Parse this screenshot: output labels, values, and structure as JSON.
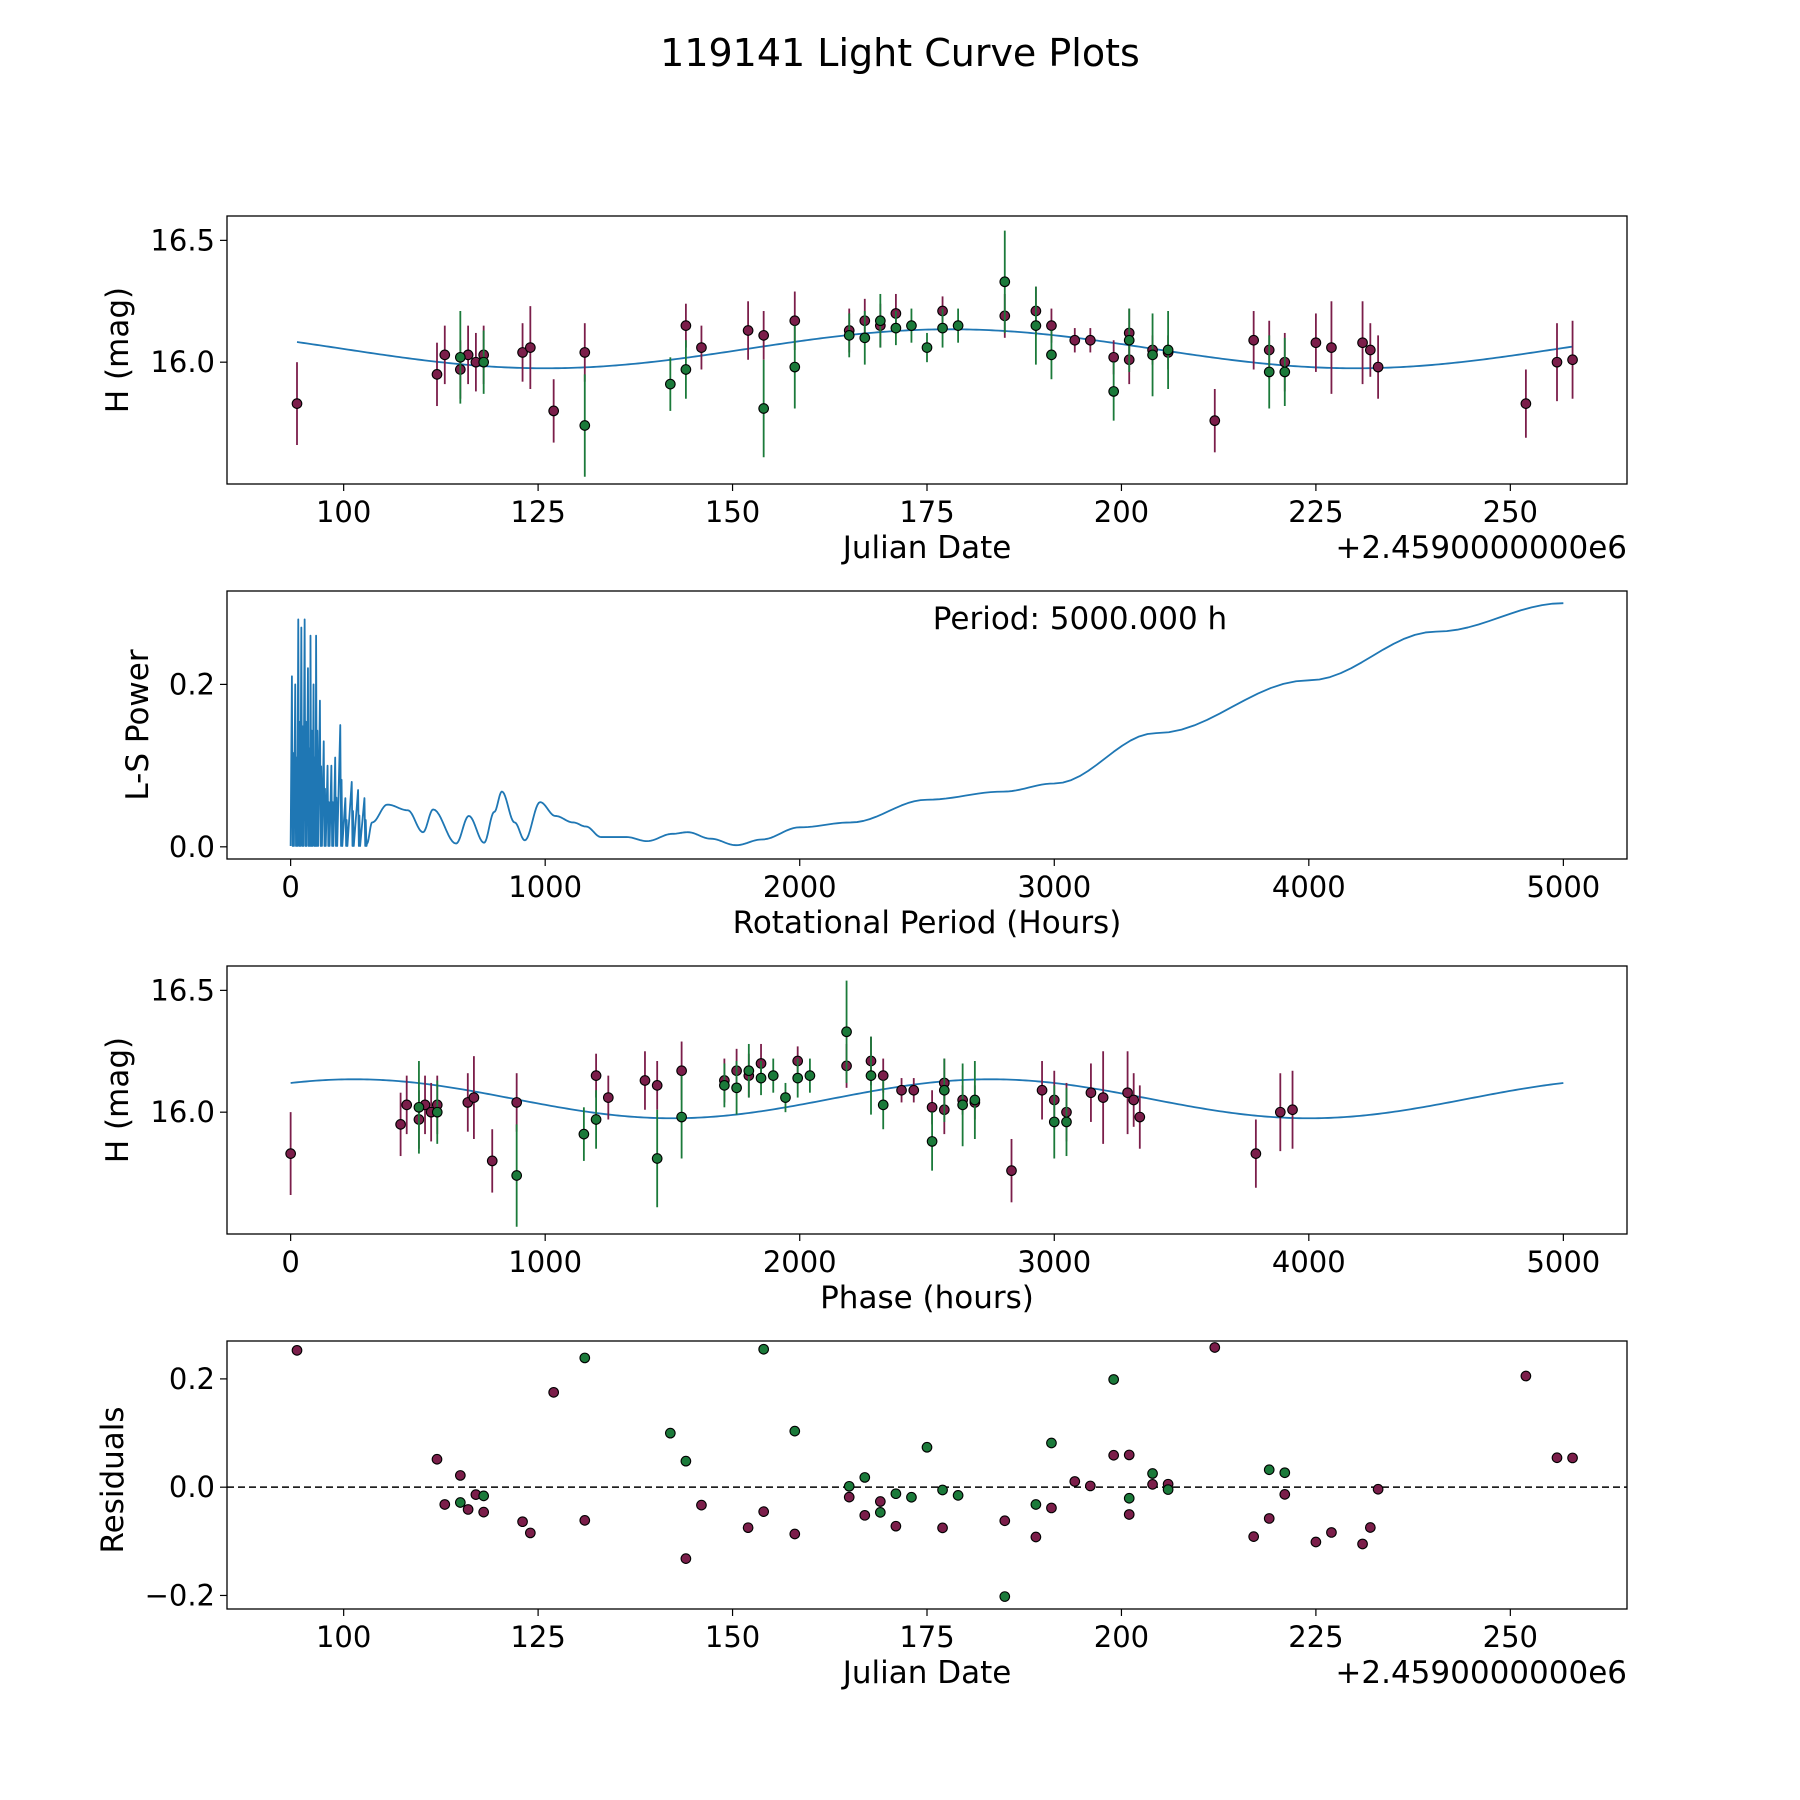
{
  "figure": {
    "title": "119141 Light Curve Plots"
  },
  "colors": {
    "model": "#1f77b4",
    "band_a": "#7b1e4a",
    "band_b": "#1b7a3a",
    "marker_edge": "#000000",
    "zero_line": "#000000"
  },
  "chart_data": [
    {
      "id": "lightcurve",
      "type": "scatter",
      "xlabel": "Julian Date",
      "ylabel": "H (mag)",
      "offset_text": "+2.4590000000e6",
      "xlim": [
        85,
        265
      ],
      "ylim": [
        15.5,
        16.6
      ],
      "x_ticks": [
        100,
        125,
        150,
        175,
        200,
        225,
        250
      ],
      "x_tick_labels": [
        "100",
        "125",
        "150",
        "175",
        "200",
        "225",
        "250"
      ],
      "y_ticks": [
        16.0,
        16.5
      ],
      "y_tick_labels": [
        "16.0",
        "16.5"
      ],
      "model_curve": {
        "kind": "sine",
        "mean": 16.055,
        "amplitude": 0.08,
        "period": 104.17,
        "peak_at": 178,
        "x_range": [
          94,
          258
        ]
      },
      "series": [
        {
          "name": "band_a",
          "color_key": "band_a",
          "points": [
            {
              "x": 94,
              "y": 15.83,
              "err": 0.17
            },
            {
              "x": 112,
              "y": 15.95,
              "err": 0.13
            },
            {
              "x": 113,
              "y": 16.03,
              "err": 0.12
            },
            {
              "x": 115,
              "y": 15.97,
              "err": 0.12
            },
            {
              "x": 116,
              "y": 16.03,
              "err": 0.12
            },
            {
              "x": 117,
              "y": 16.0,
              "err": 0.12
            },
            {
              "x": 118,
              "y": 16.03,
              "err": 0.12
            },
            {
              "x": 123,
              "y": 16.04,
              "err": 0.12
            },
            {
              "x": 124,
              "y": 16.06,
              "err": 0.17
            },
            {
              "x": 127,
              "y": 15.8,
              "err": 0.13
            },
            {
              "x": 131,
              "y": 16.04,
              "err": 0.12
            },
            {
              "x": 144,
              "y": 16.15,
              "err": 0.09
            },
            {
              "x": 146,
              "y": 16.06,
              "err": 0.09
            },
            {
              "x": 152,
              "y": 16.13,
              "err": 0.12
            },
            {
              "x": 154,
              "y": 16.11,
              "err": 0.1
            },
            {
              "x": 158,
              "y": 16.17,
              "err": 0.12
            },
            {
              "x": 165,
              "y": 16.13,
              "err": 0.09
            },
            {
              "x": 167,
              "y": 16.17,
              "err": 0.09
            },
            {
              "x": 169,
              "y": 16.15,
              "err": 0.09
            },
            {
              "x": 171,
              "y": 16.2,
              "err": 0.08
            },
            {
              "x": 177,
              "y": 16.21,
              "err": 0.06
            },
            {
              "x": 185,
              "y": 16.19,
              "err": 0.09
            },
            {
              "x": 189,
              "y": 16.21,
              "err": 0.1
            },
            {
              "x": 191,
              "y": 16.15,
              "err": 0.07
            },
            {
              "x": 194,
              "y": 16.09,
              "err": 0.05
            },
            {
              "x": 196,
              "y": 16.09,
              "err": 0.05
            },
            {
              "x": 199,
              "y": 16.02,
              "err": 0.07
            },
            {
              "x": 201,
              "y": 16.01,
              "err": 0.1
            },
            {
              "x": 201,
              "y": 16.12,
              "err": 0.1
            },
            {
              "x": 204,
              "y": 16.05,
              "err": 0.06
            },
            {
              "x": 206,
              "y": 16.04,
              "err": 0.07
            },
            {
              "x": 212,
              "y": 15.76,
              "err": 0.13
            },
            {
              "x": 217,
              "y": 16.09,
              "err": 0.12
            },
            {
              "x": 219,
              "y": 16.05,
              "err": 0.12
            },
            {
              "x": 221,
              "y": 16.0,
              "err": 0.12
            },
            {
              "x": 225,
              "y": 16.08,
              "err": 0.12
            },
            {
              "x": 227,
              "y": 16.06,
              "err": 0.19
            },
            {
              "x": 231,
              "y": 16.08,
              "err": 0.17
            },
            {
              "x": 232,
              "y": 16.05,
              "err": 0.11
            },
            {
              "x": 233,
              "y": 15.98,
              "err": 0.13
            },
            {
              "x": 252,
              "y": 15.83,
              "err": 0.14
            },
            {
              "x": 256,
              "y": 16.0,
              "err": 0.16
            },
            {
              "x": 258,
              "y": 16.01,
              "err": 0.16
            }
          ]
        },
        {
          "name": "band_b",
          "color_key": "band_b",
          "points": [
            {
              "x": 115,
              "y": 16.02,
              "err": 0.19
            },
            {
              "x": 118,
              "y": 16.0,
              "err": 0.13
            },
            {
              "x": 131,
              "y": 15.74,
              "err": 0.21
            },
            {
              "x": 142,
              "y": 15.91,
              "err": 0.11
            },
            {
              "x": 144,
              "y": 15.97,
              "err": 0.12
            },
            {
              "x": 154,
              "y": 15.81,
              "err": 0.2
            },
            {
              "x": 158,
              "y": 15.98,
              "err": 0.17
            },
            {
              "x": 165,
              "y": 16.11,
              "err": 0.09
            },
            {
              "x": 167,
              "y": 16.1,
              "err": 0.11
            },
            {
              "x": 169,
              "y": 16.17,
              "err": 0.11
            },
            {
              "x": 171,
              "y": 16.14,
              "err": 0.07
            },
            {
              "x": 173,
              "y": 16.15,
              "err": 0.07
            },
            {
              "x": 175,
              "y": 16.06,
              "err": 0.06
            },
            {
              "x": 177,
              "y": 16.14,
              "err": 0.08
            },
            {
              "x": 179,
              "y": 16.15,
              "err": 0.07
            },
            {
              "x": 185,
              "y": 16.33,
              "err": 0.21
            },
            {
              "x": 189,
              "y": 16.15,
              "err": 0.16
            },
            {
              "x": 191,
              "y": 16.03,
              "err": 0.1
            },
            {
              "x": 199,
              "y": 15.88,
              "err": 0.12
            },
            {
              "x": 201,
              "y": 16.09,
              "err": 0.13
            },
            {
              "x": 204,
              "y": 16.03,
              "err": 0.17
            },
            {
              "x": 206,
              "y": 16.05,
              "err": 0.16
            },
            {
              "x": 219,
              "y": 15.96,
              "err": 0.15
            },
            {
              "x": 221,
              "y": 15.96,
              "err": 0.14
            }
          ]
        }
      ]
    },
    {
      "id": "periodogram",
      "type": "line",
      "xlabel": "Rotational Period (Hours)",
      "ylabel": "L-S Power",
      "annotation": "Period: 5000.000 h",
      "xlim": [
        -250,
        5250
      ],
      "ylim": [
        -0.015,
        0.315
      ],
      "x_ticks": [
        0,
        1000,
        2000,
        3000,
        4000,
        5000
      ],
      "x_tick_labels": [
        "0",
        "1000",
        "2000",
        "3000",
        "4000",
        "5000"
      ],
      "y_ticks": [
        0.0,
        0.2
      ],
      "y_tick_labels": [
        "0.0",
        "0.2"
      ],
      "envelope": {
        "x": [
          300,
          320,
          380,
          460,
          520,
          560,
          650,
          700,
          760,
          800,
          830,
          880,
          920,
          980,
          1040,
          1110,
          1160,
          1220,
          1320,
          1400,
          1500,
          1560,
          1650,
          1750,
          1850,
          2000,
          2200,
          2500,
          2800,
          3000,
          3400,
          4000,
          4500,
          5000
        ],
        "y": [
          0.004,
          0.03,
          0.052,
          0.045,
          0.018,
          0.046,
          0.004,
          0.038,
          0.005,
          0.043,
          0.068,
          0.03,
          0.008,
          0.055,
          0.038,
          0.03,
          0.025,
          0.012,
          0.012,
          0.007,
          0.016,
          0.018,
          0.01,
          0.002,
          0.009,
          0.024,
          0.03,
          0.058,
          0.068,
          0.078,
          0.14,
          0.205,
          0.265,
          0.3
        ]
      },
      "dense_region": {
        "x_range": [
          0,
          300
        ],
        "peaks_x": [
          5,
          18,
          30,
          42,
          55,
          68,
          78,
          90,
          100,
          115,
          130,
          145,
          160,
          175,
          195,
          215,
          240,
          265,
          290
        ],
        "peaks_y": [
          0.21,
          0.2,
          0.28,
          0.27,
          0.28,
          0.22,
          0.26,
          0.2,
          0.26,
          0.18,
          0.13,
          0.1,
          0.1,
          0.11,
          0.15,
          0.06,
          0.08,
          0.07,
          0.06
        ]
      }
    },
    {
      "id": "phased",
      "type": "scatter",
      "xlabel": "Phase (hours)",
      "ylabel": "H (mag)",
      "xlim": [
        -250,
        5250
      ],
      "ylim": [
        15.5,
        16.6
      ],
      "x_ticks": [
        0,
        1000,
        2000,
        3000,
        4000,
        5000
      ],
      "x_tick_labels": [
        "0",
        "1000",
        "2000",
        "3000",
        "4000",
        "5000"
      ],
      "y_ticks": [
        16.0,
        16.5
      ],
      "y_tick_labels": [
        "16.0",
        "16.5"
      ],
      "model_curve": {
        "kind": "sine",
        "mean": 16.055,
        "amplitude": 0.08,
        "period": 2500,
        "peak_at": 2750,
        "x_range": [
          0,
          5000
        ]
      }
    },
    {
      "id": "residuals",
      "type": "scatter",
      "xlabel": "Julian Date",
      "ylabel": "Residuals",
      "offset_text": "+2.4590000000e6",
      "xlim": [
        85,
        265
      ],
      "ylim": [
        -0.225,
        0.27
      ],
      "x_ticks": [
        100,
        125,
        150,
        175,
        200,
        225,
        250
      ],
      "x_tick_labels": [
        "100",
        "125",
        "150",
        "175",
        "200",
        "225",
        "250"
      ],
      "y_ticks": [
        -0.2,
        0.0,
        0.2
      ],
      "y_tick_labels": [
        "−0.2",
        "0.0",
        "0.2"
      ],
      "zero_line": 0
    }
  ]
}
